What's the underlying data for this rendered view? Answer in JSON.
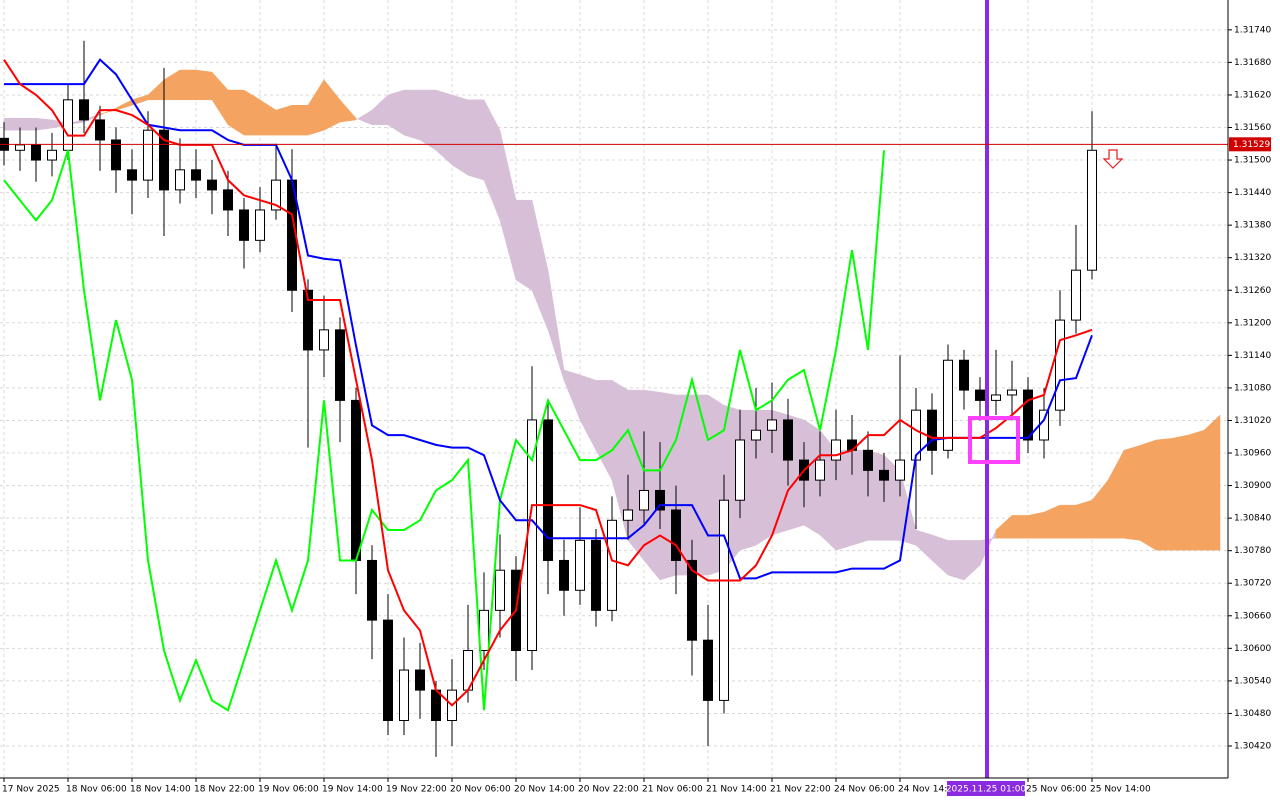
{
  "chart_data": {
    "type": "candlestick",
    "categories": [
      "17 Nov 2025",
      null,
      null,
      null,
      "18 Nov 06:00",
      null,
      null,
      null,
      "18 Nov 14:00",
      null,
      null,
      null,
      "18 Nov 22:00",
      null,
      null,
      null,
      "19 Nov 06:00",
      null,
      null,
      null,
      "19 Nov 14:00",
      null,
      null,
      null,
      "19 Nov 22:00",
      null,
      null,
      null,
      "20 Nov 06:00",
      null,
      null,
      null,
      "20 Nov 14:00",
      null,
      null,
      null,
      "20 Nov 22:00",
      null,
      null,
      null,
      "21 Nov 06:00",
      null,
      null,
      null,
      "21 Nov 14:00",
      null,
      null,
      null,
      "21 Nov 22:00",
      null,
      null,
      null,
      "24 Nov 06:00",
      null,
      null,
      null,
      "24 Nov 14:00",
      null,
      null,
      null,
      null,
      null,
      null,
      null,
      "25 Nov 06:00",
      null,
      null,
      null,
      "25 Nov 14:00",
      null,
      null,
      null,
      null,
      null,
      null,
      null,
      null
    ],
    "ohlc": {
      "open": [
        1.3154,
        1.31518,
        1.31528,
        1.315,
        1.31518,
        1.31611,
        1.31574,
        1.31537,
        1.31482,
        1.31463,
        1.31555,
        1.31445,
        1.31482,
        1.31463,
        1.31445,
        1.31408,
        1.31352,
        1.31408,
        1.31463,
        1.3126,
        1.3115,
        1.31187,
        1.31057,
        1.30762,
        1.30652,
        1.30467,
        1.3056,
        1.30523,
        1.30467,
        1.30523,
        1.30596,
        1.3067,
        1.30744,
        1.30596,
        1.31021,
        1.30762,
        1.30707,
        1.30799,
        1.3067,
        1.30836,
        1.30855,
        1.30891,
        1.30855,
        1.30762,
        1.30615,
        1.30504,
        1.30873,
        1.30984,
        1.31002,
        1.31021,
        1.30947,
        1.3091,
        1.30947,
        1.30984,
        1.30965,
        1.30928,
        1.3091,
        1.30947,
        1.31039,
        1.30965,
        1.31131,
        1.31076,
        1.31057,
        1.31067,
        1.31076,
        1.30984,
        1.31039,
        1.31205,
        1.31297,
        null,
        null,
        null,
        null,
        null,
        null,
        null,
        null
      ],
      "high": [
        1.3157,
        1.3156,
        1.3156,
        1.3155,
        1.3164,
        1.3172,
        1.316,
        1.3156,
        1.3152,
        1.3159,
        1.3167,
        1.3154,
        1.3152,
        1.315,
        1.3148,
        1.3143,
        1.3145,
        1.3153,
        1.3152,
        1.3128,
        1.3125,
        1.3121,
        1.3108,
        1.3079,
        1.307,
        1.3062,
        1.3061,
        1.3054,
        1.3058,
        1.3068,
        1.3074,
        1.3081,
        1.3077,
        1.3112,
        1.3106,
        1.308,
        1.3086,
        1.3082,
        1.3088,
        1.3092,
        1.31,
        1.3098,
        1.309,
        1.308,
        1.3068,
        1.3092,
        1.3104,
        1.3108,
        1.3109,
        1.3106,
        1.3098,
        1.31,
        1.3104,
        1.3103,
        1.31,
        1.3096,
        1.3114,
        1.3108,
        1.3107,
        1.3116,
        1.3115,
        1.311,
        1.3115,
        1.3113,
        1.311,
        1.3108,
        1.3126,
        1.3138,
        1.3159,
        null,
        null,
        null,
        null,
        null,
        null,
        null,
        null
      ],
      "low": [
        1.3149,
        1.3148,
        1.3146,
        1.3147,
        1.315,
        1.3155,
        1.3148,
        1.3144,
        1.314,
        1.3143,
        1.3136,
        1.3142,
        1.3143,
        1.314,
        1.3136,
        1.313,
        1.3133,
        1.3139,
        1.3122,
        1.3097,
        1.311,
        1.3098,
        1.307,
        1.3058,
        1.3044,
        1.3044,
        1.3047,
        1.304,
        1.3042,
        1.305,
        1.3056,
        1.3062,
        1.3054,
        1.3056,
        1.307,
        1.3066,
        1.3068,
        1.3064,
        1.3065,
        1.308,
        1.3083,
        1.3082,
        1.307,
        1.3055,
        1.3042,
        1.3048,
        1.3084,
        1.3095,
        1.3096,
        1.309,
        1.3086,
        1.3088,
        1.3091,
        1.3092,
        1.3088,
        1.3087,
        1.3088,
        1.3082,
        1.3092,
        1.3095,
        1.3104,
        1.3102,
        1.3103,
        1.3102,
        1.3096,
        1.3095,
        1.3101,
        1.3118,
        1.3128,
        null,
        null,
        null,
        null,
        null,
        null,
        null,
        null
      ],
      "close": [
        1.31518,
        1.31528,
        1.315,
        1.31518,
        1.31611,
        1.31574,
        1.31537,
        1.31482,
        1.31463,
        1.31555,
        1.31445,
        1.31482,
        1.31463,
        1.31445,
        1.31408,
        1.31352,
        1.31408,
        1.31463,
        1.3126,
        1.3115,
        1.31187,
        1.31057,
        1.30762,
        1.30652,
        1.30467,
        1.3056,
        1.30523,
        1.30467,
        1.30523,
        1.30596,
        1.3067,
        1.30744,
        1.30596,
        1.31021,
        1.30762,
        1.30707,
        1.30799,
        1.3067,
        1.30836,
        1.30855,
        1.30891,
        1.30855,
        1.30762,
        1.30615,
        1.30504,
        1.30873,
        1.30984,
        1.31002,
        1.31021,
        1.30947,
        1.3091,
        1.30947,
        1.30984,
        1.30965,
        1.30928,
        1.3091,
        1.30947,
        1.31039,
        1.30965,
        1.31131,
        1.31076,
        1.31057,
        1.31067,
        1.31076,
        1.30984,
        1.31039,
        1.31205,
        1.31297,
        1.31518,
        null,
        null,
        null,
        null,
        null,
        null,
        null,
        null
      ],
      "up_color": "#ffffff",
      "down_color": "#000000",
      "edge_color": "#000000"
    },
    "cloud": {
      "up_color": "#f4a460",
      "down_color": "#d8bfd8",
      "span_a": [
        1.31555,
        1.31555,
        1.31555,
        1.31559,
        1.31565,
        1.3157,
        1.31583,
        1.31596,
        1.31611,
        1.3162,
        1.31648,
        1.31666,
        1.31666,
        1.31662,
        1.31629,
        1.31629,
        1.31611,
        1.31592,
        1.31601,
        1.31601,
        1.31648,
        1.31611,
        1.31577,
        1.31565,
        1.31565,
        1.31546,
        1.31537,
        1.31518,
        1.31491,
        1.31472,
        1.31463,
        1.31389,
        1.31279,
        1.3126,
        1.31187,
        1.31094,
        1.31021,
        1.30965,
        1.3091,
        1.30799,
        1.30762,
        1.30726,
        1.30735,
        1.30735,
        1.30735,
        1.30744,
        1.30781,
        1.3079,
        1.30809,
        1.30818,
        1.30827,
        1.30809,
        1.30781,
        1.3079,
        1.30799,
        1.30799,
        1.30799,
        1.3079,
        1.30762,
        1.30735,
        1.30726,
        1.30753,
        1.30818,
        1.30845,
        1.30845,
        1.30851,
        1.30864,
        1.30864,
        1.30873,
        1.3091,
        1.30965,
        1.30974,
        1.30984,
        1.30987,
        1.30993,
        1.31002,
        1.3103
      ],
      "span_b": [
        1.31577,
        1.31577,
        1.31577,
        1.31574,
        1.31568,
        1.31574,
        1.31585,
        1.31592,
        1.31601,
        1.31611,
        1.31611,
        1.31611,
        1.31611,
        1.31611,
        1.31565,
        1.31546,
        1.31546,
        1.31546,
        1.31546,
        1.31546,
        1.31555,
        1.3157,
        1.31574,
        1.31592,
        1.3162,
        1.31629,
        1.31629,
        1.31629,
        1.3162,
        1.31611,
        1.31611,
        1.31555,
        1.31426,
        1.31426,
        1.31297,
        1.31113,
        1.31104,
        1.31094,
        1.31094,
        1.31076,
        1.31076,
        1.31072,
        1.31067,
        1.31067,
        1.31067,
        1.31048,
        1.31039,
        1.31039,
        1.31039,
        1.3103,
        1.31021,
        1.31002,
        1.30965,
        1.30965,
        1.30965,
        1.30956,
        1.30928,
        1.30818,
        1.30809,
        1.30799,
        1.30799,
        1.30799,
        1.30803,
        1.30803,
        1.30803,
        1.30803,
        1.30803,
        1.30803,
        1.30803,
        1.30803,
        1.30803,
        1.30799,
        1.30781,
        1.30781,
        1.30781,
        1.30781,
        1.30781
      ]
    },
    "lines": [
      {
        "color": "#00ff00",
        "values": [
          1.31463,
          1.31426,
          1.31389,
          1.31426,
          1.31518,
          1.3126,
          1.31057,
          1.31205,
          1.31095,
          1.30762,
          1.30596,
          1.30504,
          1.30578,
          1.30504,
          1.30486,
          1.30578,
          1.3067,
          1.30762,
          1.3067,
          1.30762,
          1.31057,
          1.30762,
          1.30762,
          1.30855,
          1.30818,
          1.30818,
          1.30836,
          1.30891,
          1.3091,
          1.30947,
          1.30486,
          1.30873,
          1.30984,
          1.30947,
          1.31057,
          1.31002,
          1.30947,
          1.30947,
          1.30965,
          1.31002,
          1.30928,
          1.30928,
          1.30984,
          1.31095,
          1.30984,
          1.31002,
          1.3115,
          1.31039,
          1.31057,
          1.31095,
          1.31113,
          1.31002,
          1.3115,
          1.31334,
          1.3115,
          1.31518,
          null,
          null,
          null,
          null,
          null,
          null,
          null,
          null,
          null,
          null,
          null,
          null,
          null,
          null,
          null,
          null,
          null,
          null,
          null,
          null,
          null
        ]
      },
      {
        "color": "#0000ff",
        "values": [
          1.3164,
          1.3164,
          1.3164,
          1.3164,
          1.3164,
          1.3164,
          1.31685,
          1.31658,
          1.31611,
          1.31565,
          1.3156,
          1.31555,
          1.31555,
          1.31555,
          1.31537,
          1.31528,
          1.31528,
          1.31528,
          1.31463,
          1.31324,
          1.31318,
          1.31315,
          1.31158,
          1.31011,
          1.30993,
          1.30993,
          1.30984,
          1.30975,
          1.3097,
          1.3097,
          1.30956,
          1.30873,
          1.30836,
          1.30836,
          1.30803,
          1.30803,
          1.30803,
          1.30803,
          1.30803,
          1.30803,
          1.30827,
          1.30864,
          1.30864,
          1.30864,
          1.30808,
          1.30808,
          1.30729,
          1.30729,
          1.3074,
          1.3074,
          1.3074,
          1.3074,
          1.3074,
          1.30747,
          1.30747,
          1.30747,
          1.30762,
          1.30956,
          1.30984,
          1.30988,
          1.30988,
          1.30988,
          1.30988,
          1.30988,
          1.30988,
          1.31021,
          1.31094,
          1.31098,
          1.31177,
          null,
          null,
          null,
          null,
          null,
          null,
          null,
          null
        ]
      },
      {
        "color": "#ff0000",
        "values": [
          1.31685,
          1.3164,
          1.3162,
          1.31592,
          1.31545,
          1.31545,
          1.31592,
          1.31592,
          1.31583,
          1.31565,
          1.31537,
          1.31528,
          1.31528,
          1.31528,
          1.31463,
          1.31435,
          1.31426,
          1.31417,
          1.314,
          1.31242,
          1.31242,
          1.31242,
          1.31095,
          1.30947,
          1.30744,
          1.3067,
          1.30633,
          1.30523,
          1.30495,
          1.30523,
          1.30578,
          1.30633,
          1.3067,
          1.30864,
          1.30864,
          1.30864,
          1.30864,
          1.30855,
          1.30762,
          1.30753,
          1.3079,
          1.30808,
          1.3079,
          1.30744,
          1.30725,
          1.30725,
          1.30725,
          1.30753,
          1.30808,
          1.30891,
          1.30928,
          1.30956,
          1.30956,
          1.30965,
          1.30993,
          1.30993,
          1.31021,
          1.31002,
          1.30988,
          1.30988,
          1.30988,
          1.30988,
          1.31006,
          1.3103,
          1.31057,
          1.31067,
          1.31168,
          1.31177,
          1.31187,
          null,
          null,
          null,
          null,
          null,
          null,
          null,
          null
        ]
      }
    ],
    "current_price": 1.31529,
    "current_price_color": "#d00000",
    "vline_label": "2025.11.25 01:00",
    "ylim": [
      1.30361,
      1.31795
    ],
    "yticks": [
      {
        "value": 1.3174,
        "label": "1.31740"
      },
      {
        "value": 1.3168,
        "label": "1.31680"
      },
      {
        "value": 1.3162,
        "label": "1.31620"
      },
      {
        "value": 1.3156,
        "label": "1.31560"
      },
      {
        "value": 1.315,
        "label": "1.31500"
      },
      {
        "value": 1.3144,
        "label": "1.31440"
      },
      {
        "value": 1.3138,
        "label": "1.31380"
      },
      {
        "value": 1.3132,
        "label": "1.31320"
      },
      {
        "value": 1.3126,
        "label": "1.31260"
      },
      {
        "value": 1.312,
        "label": "1.31200"
      },
      {
        "value": 1.3114,
        "label": "1.31140"
      },
      {
        "value": 1.3108,
        "label": "1.31080"
      },
      {
        "value": 1.3102,
        "label": "1.31020"
      },
      {
        "value": 1.3096,
        "label": "1.30960"
      },
      {
        "value": 1.309,
        "label": "1.30900"
      },
      {
        "value": 1.3084,
        "label": "1.30840"
      },
      {
        "value": 1.3078,
        "label": "1.30780"
      },
      {
        "value": 1.3072,
        "label": "1.30720"
      },
      {
        "value": 1.3066,
        "label": "1.30660"
      },
      {
        "value": 1.306,
        "label": "1.30600"
      },
      {
        "value": 1.3054,
        "label": "1.30540"
      },
      {
        "value": 1.3048,
        "label": "1.30480"
      },
      {
        "value": 1.3042,
        "label": "1.30420"
      }
    ],
    "grid": true
  }
}
